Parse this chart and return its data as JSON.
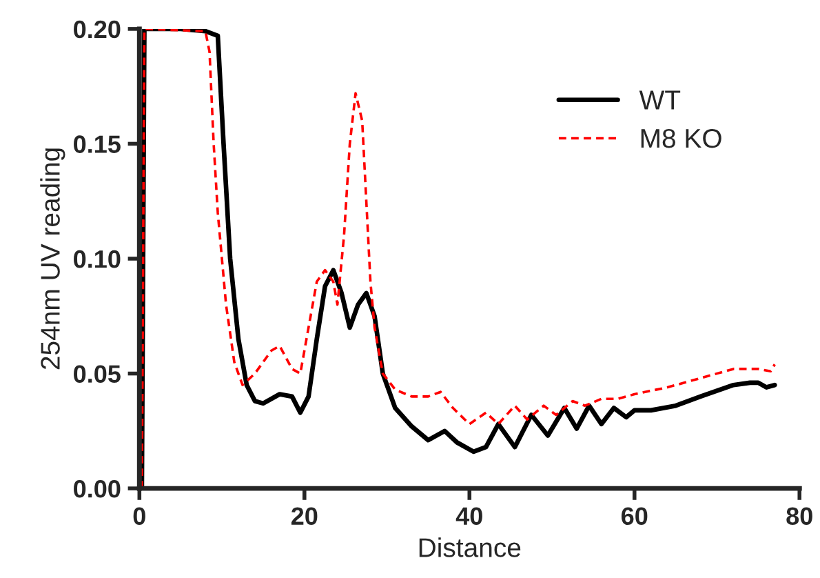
{
  "chart_data": {
    "type": "line",
    "xlabel": "Distance",
    "ylabel": "254nm UV reading",
    "xlim": [
      0,
      80
    ],
    "xticks": [
      0,
      20,
      40,
      60,
      80
    ],
    "ylim": [
      0,
      0.2
    ],
    "yticks": [
      {
        "value": 0,
        "label": "0.00"
      },
      {
        "value": 0.05,
        "label": "0.05"
      },
      {
        "value": 0.1,
        "label": "0.10"
      },
      {
        "value": 0.15,
        "label": "0.15"
      },
      {
        "value": 0.2,
        "label": "0.20"
      }
    ],
    "grid": false,
    "legend": "top right",
    "series": [
      {
        "name": "WT",
        "color": "#000000",
        "line_style": "solid",
        "x": [
          0.3,
          0.6,
          5,
          8,
          9.5,
          10.2,
          11,
          12,
          13,
          14,
          15,
          17,
          18.5,
          19.5,
          20.5,
          21.5,
          22.5,
          23.5,
          24.5,
          25.5,
          26.5,
          27.5,
          28.5,
          29.5,
          31,
          33,
          35,
          37,
          38.5,
          40.5,
          42,
          43.5,
          45.5,
          47.5,
          49.5,
          51.5,
          53,
          54.5,
          56,
          57.5,
          59,
          60,
          62,
          65,
          68,
          72,
          74,
          75,
          76,
          77
        ],
        "values": [
          0,
          0.2,
          0.2,
          0.199,
          0.197,
          0.15,
          0.1,
          0.065,
          0.045,
          0.038,
          0.037,
          0.041,
          0.04,
          0.033,
          0.04,
          0.065,
          0.088,
          0.095,
          0.085,
          0.07,
          0.08,
          0.085,
          0.075,
          0.05,
          0.035,
          0.027,
          0.021,
          0.025,
          0.02,
          0.016,
          0.018,
          0.028,
          0.018,
          0.032,
          0.023,
          0.035,
          0.026,
          0.036,
          0.028,
          0.035,
          0.031,
          0.034,
          0.034,
          0.036,
          0.04,
          0.045,
          0.046,
          0.046,
          0.044,
          0.045
        ]
      },
      {
        "name": "M8 KO",
        "color": "#ff0000",
        "line_style": "dashed",
        "x": [
          0.3,
          0.6,
          8,
          8.5,
          9,
          9.5,
          10.5,
          11.5,
          12.5,
          14,
          16,
          17,
          18.5,
          19.5,
          20.5,
          21.5,
          22.5,
          23.5,
          24,
          24.8,
          25.5,
          26.2,
          27,
          28,
          28.5,
          29.5,
          31,
          33,
          35,
          36.5,
          38,
          40,
          42,
          43.5,
          45.5,
          47,
          49,
          50.5,
          52.5,
          54,
          56,
          58,
          60,
          64,
          68,
          72,
          75,
          76.5,
          77
        ],
        "values": [
          0,
          0.2,
          0.199,
          0.19,
          0.15,
          0.12,
          0.08,
          0.055,
          0.045,
          0.05,
          0.06,
          0.062,
          0.052,
          0.05,
          0.07,
          0.09,
          0.095,
          0.09,
          0.08,
          0.11,
          0.15,
          0.172,
          0.16,
          0.09,
          0.07,
          0.05,
          0.043,
          0.04,
          0.04,
          0.042,
          0.035,
          0.028,
          0.033,
          0.028,
          0.036,
          0.03,
          0.036,
          0.032,
          0.038,
          0.036,
          0.039,
          0.039,
          0.041,
          0.044,
          0.048,
          0.052,
          0.052,
          0.051,
          0.054
        ]
      }
    ]
  }
}
